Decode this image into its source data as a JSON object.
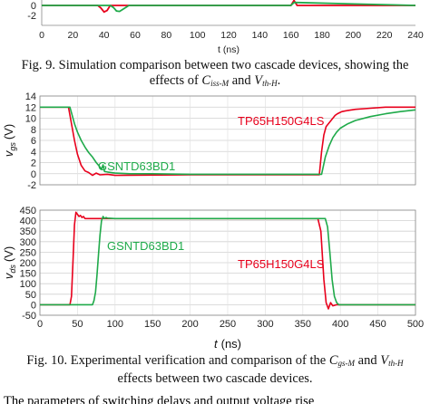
{
  "figure9": {
    "chart_data": {
      "type": "line",
      "xlabel": "t (ns)",
      "xlim": [
        0,
        240
      ],
      "x_ticks": [
        "0",
        "20",
        "40",
        "60",
        "80",
        "100",
        "120",
        "140",
        "160",
        "180",
        "200",
        "220",
        "240"
      ],
      "y_ticks": [
        "0",
        "-2"
      ],
      "series": [
        {
          "color": "#e8001c",
          "x": [
            0,
            36,
            38,
            40,
            42,
            44,
            48,
            160,
            162,
            164,
            240
          ],
          "y": [
            0,
            0,
            -0.5,
            -1.3,
            -1.0,
            0,
            0,
            0,
            1.0,
            0,
            0
          ]
        },
        {
          "color": "#1faa4a",
          "x": [
            0,
            44,
            46,
            48,
            50,
            52,
            56,
            160,
            162,
            240
          ],
          "y": [
            0,
            0,
            -0.4,
            -1.1,
            -1.2,
            -0.8,
            0,
            0,
            0.6,
            0
          ]
        }
      ]
    },
    "caption_line1": "Fig. 9. Simulation comparison between two cascade devices, showing the",
    "caption_line2_prefix": "effects of",
    "caption_c": "C",
    "caption_c_sub": "iss-M",
    "caption_and": "and",
    "caption_v": "V",
    "caption_v_sub": "th-H",
    "caption_end": "."
  },
  "figure10": {
    "chart_data": [
      {
        "type": "line",
        "ylabel_main": "v",
        "ylabel_sub": "gs",
        "ylabel_unit": "(V)",
        "xlim": [
          0,
          500
        ],
        "ylim": [
          -2,
          14
        ],
        "y_ticks": [
          "14",
          "12",
          "10",
          "8",
          "6",
          "4",
          "2",
          "0",
          "-2"
        ],
        "annotations": [
          {
            "text": "TP65H150G4LS",
            "color": "#e8001c"
          },
          {
            "text": "GSNTD63BD1",
            "color": "#1faa4a"
          }
        ],
        "series": [
          {
            "name": "TP65H150G4LS",
            "color": "#e8001c",
            "x": [
              0,
              38,
              42,
              46,
              50,
              55,
              60,
              65,
              70,
              75,
              80,
              90,
              100,
              200,
              300,
              372,
              375,
              378,
              381,
              384,
              387,
              390,
              393,
              396,
              399,
              402,
              410,
              420,
              440,
              460,
              480,
              500
            ],
            "y": [
              12,
              12,
              9,
              6,
              3.5,
              1.5,
              0.5,
              0.2,
              -0.3,
              0.1,
              -0.2,
              -0.1,
              -0.3,
              -0.2,
              -0.2,
              -0.2,
              4,
              7,
              8.5,
              9,
              9.5,
              10,
              10.5,
              10.8,
              11,
              11.2,
              11.4,
              11.6,
              11.8,
              12,
              12,
              12
            ]
          },
          {
            "name": "GSNTD63BD1",
            "color": "#1faa4a",
            "x": [
              0,
              40,
              43,
              46,
              50,
              55,
              60,
              65,
              70,
              75,
              80,
              82,
              84,
              86,
              90,
              100,
              120,
              150,
              200,
              300,
              375,
              380,
              385,
              390,
              395,
              400,
              410,
              420,
              440,
              460,
              480,
              500
            ],
            "y": [
              12,
              12,
              10.5,
              9,
              7.5,
              6,
              4.8,
              3.8,
              3,
              2,
              1.2,
              0.8,
              1.6,
              0.4,
              0.3,
              0.1,
              0,
              0,
              -0.1,
              -0.1,
              -0.1,
              3,
              5,
              6.5,
              7.5,
              8.2,
              9,
              9.6,
              10.3,
              10.8,
              11.2,
              11.5
            ]
          }
        ]
      },
      {
        "type": "line",
        "ylabel_main": "v",
        "ylabel_sub": "ds",
        "ylabel_unit": "(V)",
        "xlabel_main": "t",
        "xlabel_unit": "(ns)",
        "xlim": [
          0,
          500
        ],
        "ylim": [
          -50,
          450
        ],
        "y_ticks": [
          "450",
          "400",
          "350",
          "300",
          "250",
          "200",
          "150",
          "100",
          "50",
          "0",
          "-50"
        ],
        "x_ticks": [
          "0",
          "50",
          "100",
          "150",
          "200",
          "250",
          "300",
          "350",
          "400",
          "450",
          "500"
        ],
        "annotations": [
          {
            "text": "GSNTD63BD1",
            "color": "#1faa4a"
          },
          {
            "text": "TP65H150G4LS",
            "color": "#e8001c"
          }
        ],
        "series": [
          {
            "name": "TP65H150G4LS",
            "color": "#e8001c",
            "x": [
              0,
              40,
              42,
              44,
              46,
              48,
              50,
              52,
              54,
              56,
              58,
              60,
              70,
              100,
              200,
              300,
              370,
              374,
              378,
              381,
              384,
              387,
              390,
              395,
              400,
              420,
              500
            ],
            "y": [
              0,
              0,
              40,
              200,
              380,
              440,
              430,
              420,
              425,
              415,
              420,
              410,
              410,
              410,
              410,
              410,
              410,
              350,
              120,
              10,
              -20,
              10,
              -5,
              0,
              0,
              0,
              0
            ]
          },
          {
            "name": "GSNTD63BD1",
            "color": "#1faa4a",
            "x": [
              0,
              70,
              72,
              74,
              76,
              78,
              80,
              82,
              84,
              86,
              88,
              90,
              100,
              150,
              200,
              300,
              380,
              383,
              386,
              389,
              392,
              395,
              398,
              400,
              410,
              420,
              500
            ],
            "y": [
              0,
              0,
              20,
              60,
              140,
              240,
              330,
              400,
              420,
              410,
              415,
              412,
              410,
              410,
              410,
              410,
              410,
              370,
              250,
              120,
              40,
              10,
              0,
              0,
              0,
              0,
              0
            ]
          }
        ]
      }
    ],
    "caption_line1_prefix": "Fig. 10. Experimental verification and comparison of the",
    "caption_c": "C",
    "caption_c_sub": "gs-M",
    "caption_and": "and",
    "caption_v": "V",
    "caption_v_sub": "th-H",
    "caption_line2": "effects between two cascade devices."
  },
  "body_text_fragment": "The parameters of switching delays and output voltage rise"
}
